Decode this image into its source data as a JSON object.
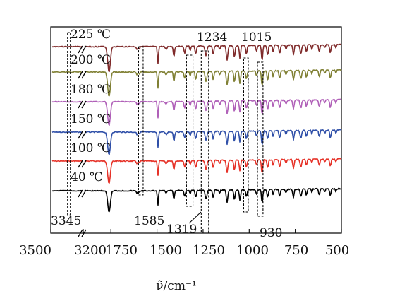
{
  "chart_data": {
    "type": "line",
    "title": "",
    "xlabel": "ν̃/cm⁻¹",
    "ylabel": "",
    "x_reversed": true,
    "axis_break": true,
    "x_segments": [
      {
        "from": 3500,
        "to": 3200
      },
      {
        "from": 1900,
        "to": 500
      }
    ],
    "xticks": [
      {
        "value": 3500,
        "label": "3500"
      },
      {
        "value": 3200,
        "label": "3200"
      },
      {
        "value": 1750,
        "label": "1750"
      },
      {
        "value": 1500,
        "label": "1500"
      },
      {
        "value": 1250,
        "label": "1250"
      },
      {
        "value": 1000,
        "label": "1000"
      },
      {
        "value": 750,
        "label": "750"
      },
      {
        "value": 500,
        "label": "500"
      }
    ],
    "grid": false,
    "legend": "none",
    "series": [
      {
        "name": "225 ℃",
        "color": "#7f2a2a"
      },
      {
        "name": "200 ℃",
        "color": "#808034"
      },
      {
        "name": "180 ℃",
        "color": "#b060b8"
      },
      {
        "name": "150 ℃",
        "color": "#2f4fa8"
      },
      {
        "name": "100 ℃",
        "color": "#e63228"
      },
      {
        "name": "40 ℃",
        "color": "#000000"
      }
    ],
    "peaks": [
      {
        "value": 1760
      },
      {
        "value": 1495
      },
      {
        "value": 1408
      },
      {
        "value": 1350
      },
      {
        "value": 1290
      },
      {
        "value": 1195
      },
      {
        "value": 1120
      },
      {
        "value": 1080
      },
      {
        "value": 1050
      },
      {
        "value": 900
      },
      {
        "value": 870
      },
      {
        "value": 835
      },
      {
        "value": 760
      },
      {
        "value": 720
      },
      {
        "value": 690
      },
      {
        "value": 620
      },
      {
        "value": 560
      }
    ],
    "annotations": [
      {
        "label": "3345",
        "x_from": 3345,
        "x_to": 3340
      },
      {
        "label": "1585",
        "x_from": 1600,
        "x_to": 1575
      },
      {
        "label": "1319",
        "x_from": 1340,
        "x_to": 1305
      },
      {
        "label": "1234",
        "x_from": 1260,
        "x_to": 1220
      },
      {
        "label": "1015",
        "x_from": 1030,
        "x_to": 1005
      },
      {
        "label": "930",
        "x_from": 955,
        "x_to": 925
      }
    ]
  }
}
